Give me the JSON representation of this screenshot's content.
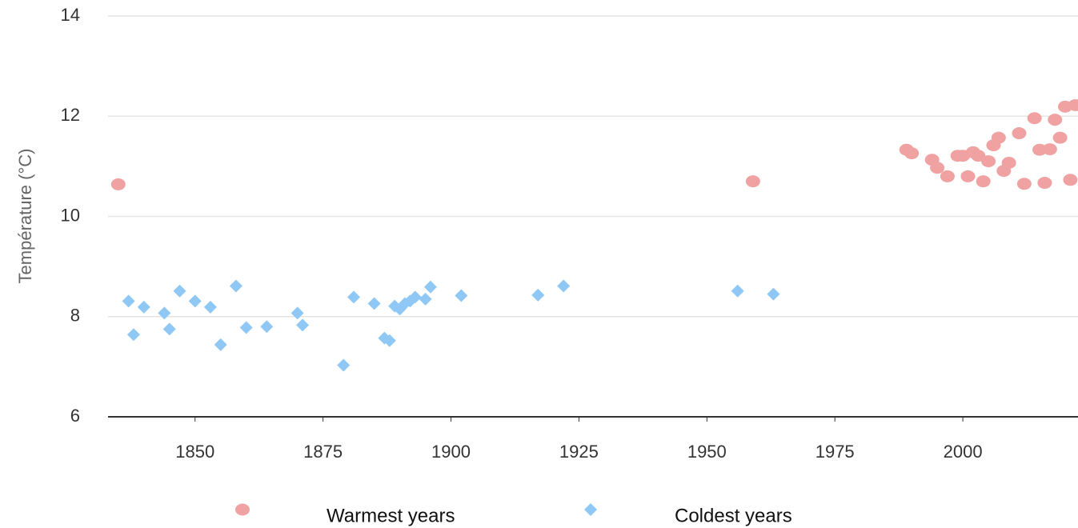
{
  "chart_data": {
    "type": "scatter",
    "y_label": "Température (°C)",
    "xlim": [
      1833,
      2022.5
    ],
    "xticks": [
      1850,
      1875,
      1900,
      1925,
      1950,
      1975,
      2000
    ],
    "ylim": [
      6,
      14
    ],
    "yticks": [
      6,
      8,
      10,
      12,
      14
    ],
    "grid": true,
    "legend": "bottom",
    "series": [
      {
        "name": "Warmest years",
        "color": "#f0a1a1",
        "marker": "circle",
        "x": [
          1835,
          1959,
          1989,
          1990,
          1994,
          1995,
          1997,
          1999,
          2000,
          2001,
          2002,
          2003,
          2004,
          2005,
          2006,
          2007,
          2008,
          2009,
          2011,
          2012,
          2014,
          2015,
          2016,
          2017,
          2018,
          2019,
          2020,
          2021,
          2022
        ],
        "values": [
          10.64,
          10.7,
          11.33,
          11.26,
          11.13,
          10.97,
          10.8,
          11.21,
          11.21,
          10.8,
          11.28,
          11.21,
          10.7,
          11.1,
          11.42,
          11.57,
          10.91,
          11.07,
          11.66,
          10.65,
          11.96,
          11.33,
          10.67,
          11.34,
          11.93,
          11.57,
          12.19,
          10.73,
          12.22
        ]
      },
      {
        "name": "Coldest years",
        "color": "#8fc8f5",
        "marker": "diamond",
        "x": [
          1837,
          1838,
          1840,
          1844,
          1845,
          1847,
          1850,
          1853,
          1855,
          1858,
          1860,
          1864,
          1870,
          1871,
          1879,
          1881,
          1885,
          1887,
          1888,
          1889,
          1890,
          1891,
          1892,
          1893,
          1895,
          1896,
          1902,
          1917,
          1922,
          1956,
          1963
        ],
        "values": [
          8.31,
          7.64,
          8.19,
          8.07,
          7.75,
          8.51,
          8.31,
          8.19,
          7.44,
          8.61,
          7.78,
          7.8,
          8.07,
          7.83,
          7.03,
          8.39,
          8.26,
          7.57,
          7.52,
          8.21,
          8.15,
          8.26,
          8.31,
          8.39,
          8.35,
          8.59,
          8.42,
          8.43,
          8.61,
          8.51,
          8.45
        ]
      }
    ]
  }
}
